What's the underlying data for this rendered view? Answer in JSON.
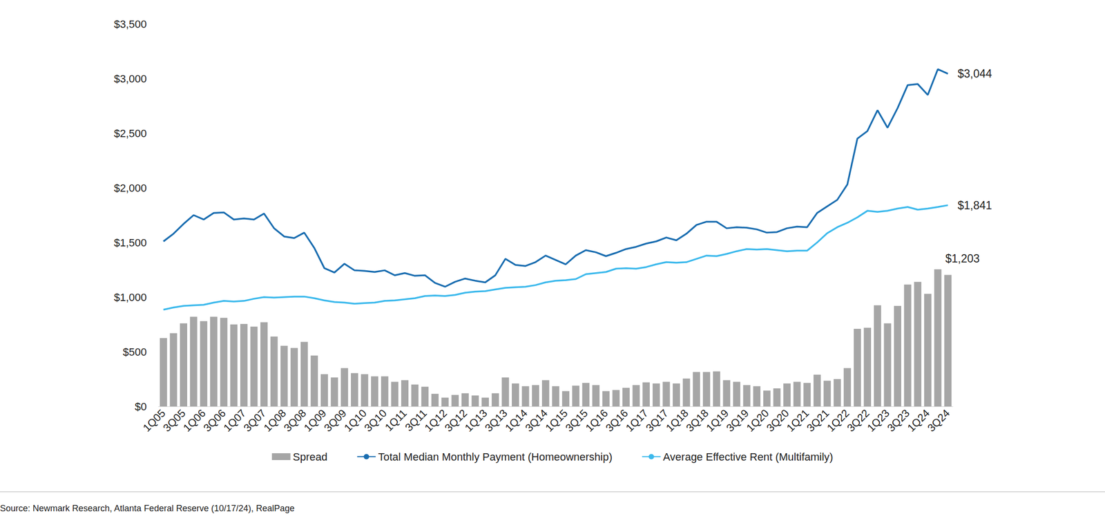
{
  "chart_data": {
    "type": "bar",
    "source": "Source: Newmark Research, Atlanta Federal Reserve (10/17/24), RealPage",
    "categories": [
      "1Q05",
      null,
      "3Q05",
      null,
      "1Q06",
      null,
      "3Q06",
      null,
      "1Q07",
      null,
      "3Q07",
      null,
      "1Q08",
      null,
      "3Q08",
      null,
      "1Q09",
      null,
      "3Q09",
      null,
      "1Q10",
      null,
      "3Q10",
      null,
      "1Q11",
      null,
      "3Q11",
      null,
      "1Q12",
      null,
      "3Q12",
      null,
      "1Q13",
      null,
      "3Q13",
      null,
      "1Q14",
      null,
      "3Q14",
      null,
      "1Q15",
      null,
      "3Q15",
      null,
      "1Q16",
      null,
      "3Q16",
      null,
      "1Q17",
      null,
      "3Q17",
      null,
      "1Q18",
      null,
      "3Q18",
      null,
      "1Q19",
      null,
      "3Q19",
      null,
      "1Q20",
      null,
      "3Q20",
      null,
      "1Q21",
      null,
      "3Q21",
      null,
      "1Q22",
      null,
      "3Q22",
      null,
      "1Q23",
      null,
      "3Q23",
      null,
      "1Q24",
      null,
      "3Q24"
    ],
    "series": [
      {
        "name": "Spread",
        "type": "bar",
        "color": "#a6a6a6",
        "values": [
          625,
          670,
          760,
          820,
          780,
          820,
          810,
          750,
          755,
          730,
          770,
          640,
          555,
          535,
          590,
          465,
          295,
          265,
          350,
          305,
          295,
          275,
          275,
          225,
          240,
          200,
          180,
          115,
          80,
          105,
          120,
          100,
          80,
          120,
          265,
          210,
          185,
          195,
          240,
          185,
          140,
          190,
          215,
          195,
          140,
          150,
          170,
          195,
          220,
          210,
          225,
          210,
          255,
          315,
          315,
          320,
          240,
          225,
          195,
          185,
          145,
          165,
          210,
          225,
          215,
          290,
          235,
          250,
          350,
          710,
          720,
          925,
          760,
          920,
          1115,
          1140,
          1030,
          1255,
          1203
        ]
      },
      {
        "name": "Total Median Monthly Payment (Homeownership)",
        "type": "line",
        "color": "#1a6db0",
        "line_style": "solid",
        "marker": "none",
        "values": [
          1510,
          1580,
          1670,
          1750,
          1710,
          1770,
          1775,
          1710,
          1720,
          1710,
          1765,
          1630,
          1555,
          1540,
          1590,
          1450,
          1265,
          1225,
          1305,
          1245,
          1240,
          1230,
          1245,
          1200,
          1220,
          1195,
          1200,
          1130,
          1095,
          1140,
          1170,
          1150,
          1135,
          1200,
          1350,
          1295,
          1285,
          1320,
          1380,
          1340,
          1300,
          1380,
          1430,
          1410,
          1375,
          1405,
          1440,
          1460,
          1490,
          1510,
          1545,
          1520,
          1580,
          1660,
          1690,
          1690,
          1630,
          1640,
          1635,
          1620,
          1590,
          1595,
          1630,
          1645,
          1640,
          1770,
          1830,
          1890,
          2030,
          2450,
          2520,
          2710,
          2550,
          2730,
          2940,
          2950,
          2850,
          3085,
          3044
        ]
      },
      {
        "name": "Average Effective Rent (Multifamily)",
        "type": "line",
        "color": "#3cb9ec",
        "line_style": "solid",
        "marker": "none",
        "values": [
          885,
          905,
          920,
          925,
          930,
          950,
          965,
          960,
          965,
          985,
          1000,
          995,
          1000,
          1005,
          1005,
          990,
          970,
          955,
          950,
          940,
          945,
          950,
          965,
          970,
          980,
          990,
          1010,
          1015,
          1010,
          1020,
          1040,
          1050,
          1055,
          1070,
          1085,
          1090,
          1095,
          1110,
          1135,
          1150,
          1155,
          1165,
          1210,
          1220,
          1230,
          1260,
          1265,
          1260,
          1275,
          1300,
          1320,
          1315,
          1320,
          1350,
          1380,
          1375,
          1395,
          1420,
          1440,
          1435,
          1440,
          1430,
          1420,
          1425,
          1425,
          1500,
          1585,
          1640,
          1680,
          1730,
          1790,
          1780,
          1790,
          1810,
          1825,
          1800,
          1810,
          1825,
          1841
        ]
      }
    ],
    "annotations": [
      {
        "series": "Total Median Monthly Payment (Homeownership)",
        "x": "3Q24",
        "y": 3044,
        "text": "$3,044"
      },
      {
        "series": "Average Effective Rent (Multifamily)",
        "x": "3Q24",
        "y": 1841,
        "text": "$1,841"
      },
      {
        "series": "Spread",
        "x": "3Q24",
        "y": 1203,
        "text": "$1,203"
      }
    ],
    "ylim": [
      0,
      3500
    ],
    "yticks": [
      {
        "value": 0,
        "label": "$0"
      },
      {
        "value": 500,
        "label": "$500"
      },
      {
        "value": 1000,
        "label": "$1,000"
      },
      {
        "value": 1500,
        "label": "$1,500"
      },
      {
        "value": 2000,
        "label": "$2,000"
      },
      {
        "value": 2500,
        "label": "$2,500"
      },
      {
        "value": 3000,
        "label": "$3,000"
      },
      {
        "value": 3500,
        "label": "$3,500"
      }
    ],
    "grid": false,
    "legend": "bottom",
    "stacked": false,
    "data_labels": false
  }
}
